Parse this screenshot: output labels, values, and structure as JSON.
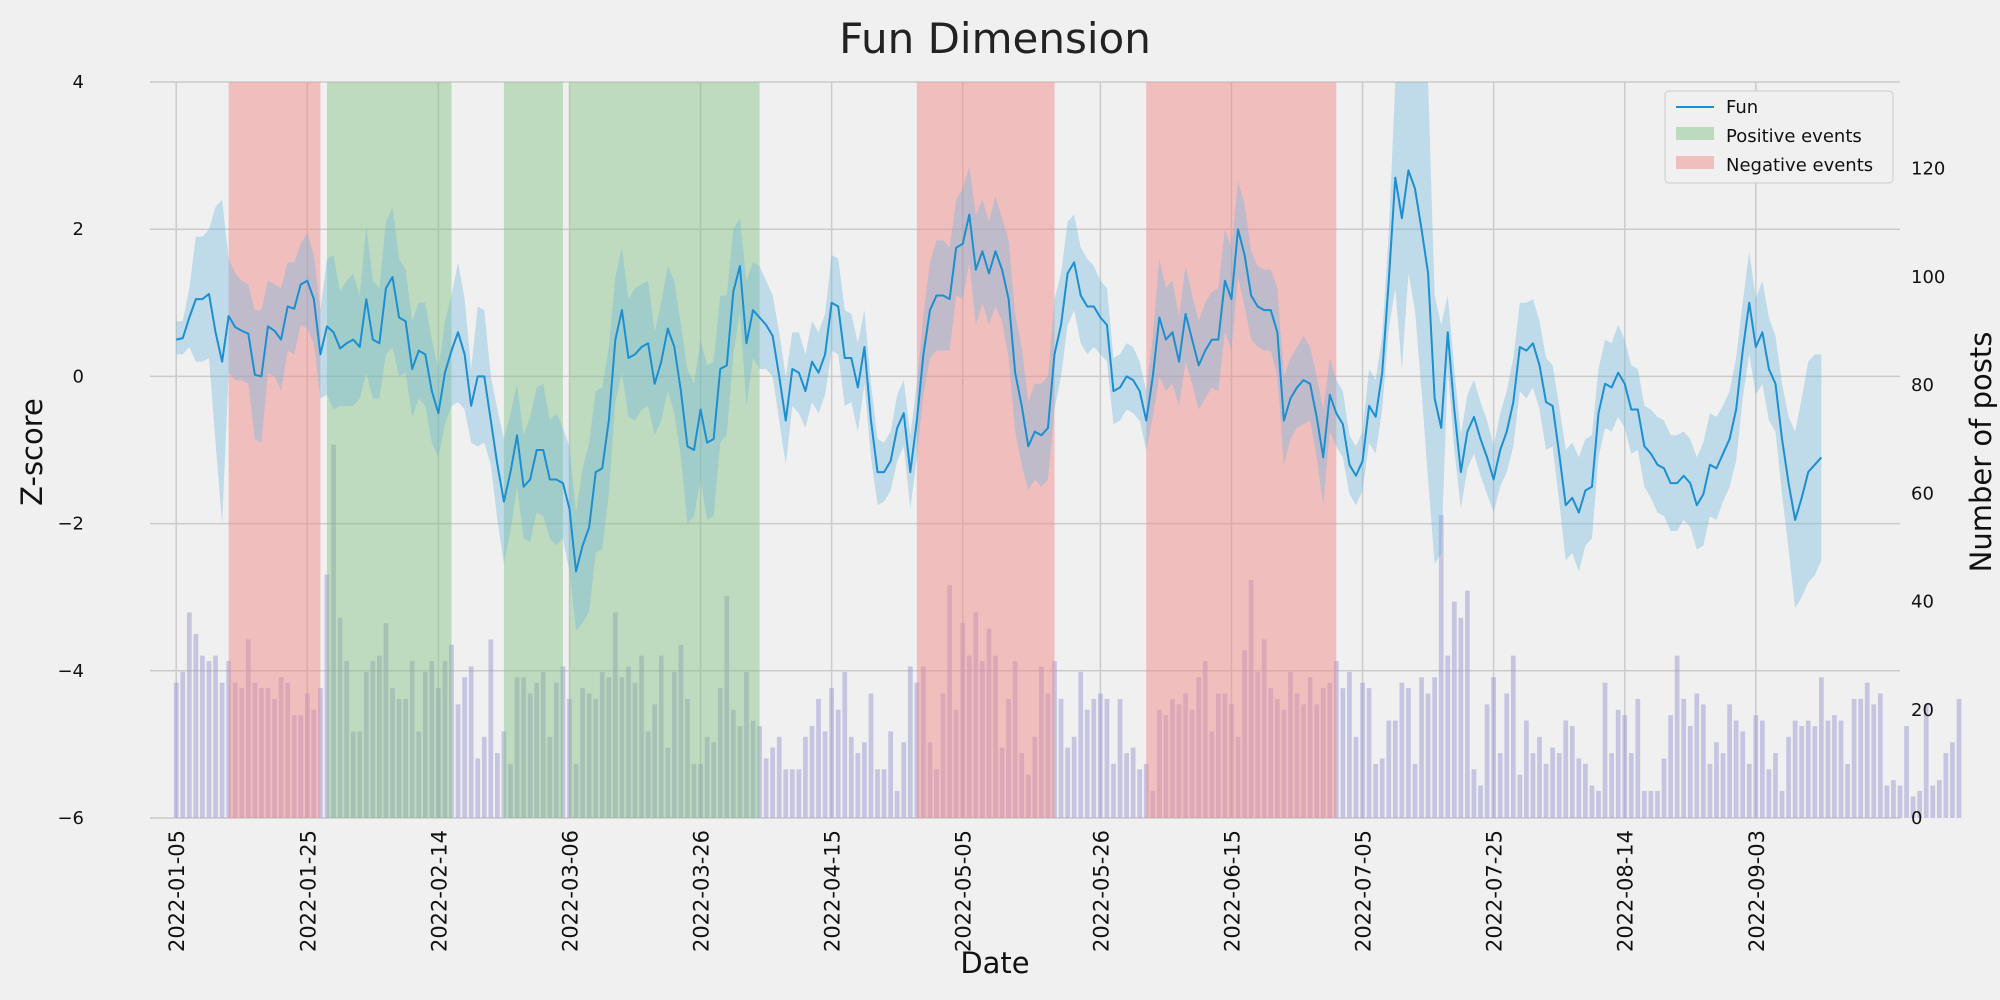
{
  "chart_data": {
    "type": "line",
    "title": "Fun Dimension",
    "xlabel": "Date",
    "ylabel": "Z-score",
    "y2label": "Number of posts",
    "ylim": [
      -6,
      4
    ],
    "y2lim": [
      0,
      136
    ],
    "xlim": [
      "2022-01-01",
      "2022-09-25"
    ],
    "yticks": [
      4,
      2,
      0,
      -2,
      -4,
      -6
    ],
    "y2ticks": [
      120,
      100,
      80,
      60,
      40,
      20,
      0
    ],
    "xticks": [
      "2022-01-05",
      "2022-01-25",
      "2022-02-14",
      "2022-03-06",
      "2022-03-26",
      "2022-04-15",
      "2022-05-05",
      "2022-05-26",
      "2022-06-15",
      "2022-07-05",
      "2022-07-25",
      "2022-08-14",
      "2022-09-03"
    ],
    "grid": true,
    "legend": {
      "placement": "top-right",
      "entries": [
        {
          "label": "Fun",
          "kind": "line",
          "color": "#1c8fd0"
        },
        {
          "label": "Positive events",
          "kind": "patch",
          "color": "#7cbf7c"
        },
        {
          "label": "Negative events",
          "kind": "patch",
          "color": "#f28c8c"
        }
      ]
    },
    "positive_events": [
      [
        "2022-01-28",
        "2022-02-16"
      ],
      [
        "2022-02-24",
        "2022-03-05"
      ],
      [
        "2022-03-06",
        "2022-04-04"
      ]
    ],
    "negative_events": [
      [
        "2022-01-13",
        "2022-01-27"
      ],
      [
        "2022-04-28",
        "2022-05-19"
      ],
      [
        "2022-06-02",
        "2022-07-01"
      ]
    ],
    "series": [
      {
        "name": "Fun",
        "start_date": "2022-01-05",
        "color": "#1c8fd0",
        "values": [
          0.5,
          0.52,
          0.8,
          1.05,
          1.05,
          1.12,
          0.6,
          0.2,
          0.82,
          0.67,
          0.62,
          0.58,
          0.02,
          0.0,
          0.68,
          0.62,
          0.5,
          0.95,
          0.92,
          1.25,
          1.3,
          1.05,
          0.3,
          0.68,
          0.6,
          0.38,
          0.45,
          0.5,
          0.4,
          1.05,
          0.5,
          0.45,
          1.2,
          1.35,
          0.8,
          0.75,
          0.1,
          0.35,
          0.3,
          -0.2,
          -0.5,
          0.05,
          0.35,
          0.6,
          0.3,
          -0.4,
          0.0,
          0.0,
          -0.6,
          -1.2,
          -1.7,
          -1.3,
          -0.8,
          -1.5,
          -1.4,
          -1.0,
          -1.0,
          -1.4,
          -1.4,
          -1.45,
          -1.8,
          -2.65,
          -2.3,
          -2.05,
          -1.3,
          -1.25,
          -0.6,
          0.5,
          0.9,
          0.25,
          0.3,
          0.4,
          0.45,
          -0.1,
          0.2,
          0.65,
          0.4,
          -0.2,
          -0.95,
          -1.0,
          -0.45,
          -0.9,
          -0.85,
          0.1,
          0.15,
          1.15,
          1.5,
          0.45,
          0.9,
          0.8,
          0.7,
          0.55,
          0.0,
          -0.6,
          0.1,
          0.05,
          -0.2,
          0.2,
          0.05,
          0.3,
          1.0,
          0.95,
          0.25,
          0.25,
          -0.15,
          0.4,
          -0.6,
          -1.3,
          -1.3,
          -1.15,
          -0.7,
          -0.5,
          -1.3,
          -0.6,
          0.3,
          0.9,
          1.1,
          1.1,
          1.05,
          1.75,
          1.8,
          2.2,
          1.45,
          1.7,
          1.4,
          1.7,
          1.45,
          1.05,
          0.05,
          -0.4,
          -0.95,
          -0.75,
          -0.8,
          -0.7,
          0.3,
          0.7,
          1.4,
          1.55,
          1.1,
          0.95,
          0.95,
          0.8,
          0.7,
          -0.2,
          -0.15,
          0.0,
          -0.05,
          -0.2,
          -0.6,
          0.0,
          0.8,
          0.5,
          0.6,
          0.2,
          0.85,
          0.5,
          0.15,
          0.35,
          0.5,
          0.5,
          1.3,
          1.05,
          2.0,
          1.65,
          1.1,
          0.95,
          0.9,
          0.9,
          0.6,
          -0.6,
          -0.3,
          -0.15,
          -0.05,
          -0.1,
          -0.55,
          -1.1,
          -0.25,
          -0.5,
          -0.65,
          -1.2,
          -1.35,
          -1.15,
          -0.4,
          -0.55,
          0.05,
          1.3,
          2.7,
          2.15,
          2.8,
          2.55,
          2.0,
          1.4,
          -0.3,
          -0.7,
          0.6,
          -0.45,
          -1.3,
          -0.75,
          -0.55,
          -0.85,
          -1.1,
          -1.4,
          -1.0,
          -0.75,
          -0.35,
          0.4,
          0.35,
          0.45,
          0.15,
          -0.35,
          -0.4,
          -1.05,
          -1.75,
          -1.65,
          -1.85,
          -1.55,
          -1.5,
          -0.5,
          -0.1,
          -0.15,
          0.05,
          -0.1,
          -0.45,
          -0.45,
          -0.95,
          -1.05,
          -1.2,
          -1.25,
          -1.45,
          -1.45,
          -1.35,
          -1.45,
          -1.75,
          -1.6,
          -1.2,
          -1.25,
          -1.05,
          -0.85,
          -0.45,
          0.35,
          1.0,
          0.4,
          0.6,
          0.1,
          -0.1,
          -0.85,
          -1.45,
          -1.95,
          -1.65,
          -1.3,
          -1.2,
          -1.1
        ],
        "band_upper": [
          0.75,
          0.75,
          1.2,
          1.9,
          1.9,
          2.0,
          2.3,
          2.4,
          1.6,
          1.4,
          1.3,
          1.25,
          0.9,
          0.9,
          1.3,
          1.25,
          1.2,
          1.55,
          1.55,
          1.8,
          1.95,
          1.65,
          0.9,
          1.6,
          1.65,
          1.15,
          1.3,
          1.4,
          1.1,
          2.05,
          1.3,
          1.2,
          2.1,
          2.3,
          1.6,
          1.45,
          0.75,
          1.0,
          1.0,
          0.5,
          0.1,
          0.75,
          1.1,
          1.55,
          1.05,
          0.1,
          0.95,
          0.9,
          0.0,
          -0.45,
          -0.85,
          -0.5,
          -0.1,
          -0.8,
          -0.55,
          -0.15,
          -0.1,
          -0.6,
          -0.5,
          -0.7,
          -0.95,
          -1.85,
          -1.25,
          -0.9,
          -0.2,
          -0.15,
          0.4,
          1.35,
          1.75,
          1.05,
          1.2,
          1.25,
          1.3,
          0.6,
          1.0,
          1.5,
          1.3,
          0.7,
          0.1,
          -0.1,
          0.5,
          0.15,
          0.2,
          1.1,
          1.1,
          2.0,
          2.15,
          1.3,
          1.55,
          1.5,
          1.3,
          1.1,
          0.6,
          0.0,
          0.6,
          0.6,
          0.3,
          0.75,
          0.6,
          0.85,
          1.65,
          1.6,
          0.9,
          0.85,
          0.45,
          0.9,
          -0.1,
          -0.85,
          -0.9,
          -0.75,
          -0.25,
          -0.05,
          -0.8,
          -0.1,
          0.85,
          1.55,
          1.85,
          1.85,
          1.75,
          2.4,
          2.55,
          2.85,
          2.2,
          2.4,
          2.1,
          2.45,
          2.15,
          1.85,
          0.85,
          0.4,
          -0.35,
          -0.1,
          -0.1,
          0.0,
          1.05,
          1.4,
          2.1,
          2.2,
          1.75,
          1.6,
          1.5,
          1.3,
          1.2,
          0.25,
          0.3,
          0.45,
          0.4,
          0.2,
          -0.2,
          0.55,
          1.6,
          1.2,
          1.3,
          0.8,
          1.5,
          1.1,
          0.75,
          1.0,
          1.15,
          1.2,
          2.0,
          1.75,
          2.65,
          2.35,
          1.7,
          1.5,
          1.45,
          1.45,
          1.2,
          0.0,
          0.25,
          0.4,
          0.55,
          0.4,
          0.0,
          -0.45,
          0.25,
          -0.05,
          -0.2,
          -0.8,
          -0.95,
          -0.75,
          0.1,
          -0.05,
          0.55,
          1.95,
          4.2,
          4.2,
          4.2,
          4.2,
          4.2,
          4.2,
          1.1,
          0.7,
          1.1,
          0.1,
          -0.8,
          -0.25,
          -0.05,
          -0.35,
          -0.6,
          -0.95,
          -0.5,
          -0.2,
          0.25,
          1.0,
          1.0,
          1.05,
          0.75,
          0.25,
          0.15,
          -0.4,
          -1.0,
          -0.9,
          -1.1,
          -0.85,
          -0.8,
          0.1,
          0.5,
          0.45,
          0.7,
          0.5,
          0.15,
          0.1,
          -0.4,
          -0.45,
          -0.55,
          -0.6,
          -0.8,
          -0.8,
          -0.75,
          -0.85,
          -1.1,
          -0.9,
          -0.5,
          -0.55,
          -0.4,
          -0.2,
          0.25,
          1.0,
          1.7,
          1.05,
          1.3,
          0.8,
          0.55,
          -0.1,
          -0.55,
          -0.75,
          -0.3,
          0.2,
          0.3,
          0.3
        ],
        "band_lower": [
          0.3,
          0.3,
          0.4,
          0.2,
          0.2,
          0.25,
          -0.9,
          -2.0,
          0.05,
          -0.05,
          -0.05,
          -0.1,
          -0.85,
          -0.9,
          0.05,
          0.0,
          -0.2,
          0.35,
          0.3,
          0.7,
          0.65,
          0.45,
          -0.3,
          -0.25,
          -0.45,
          -0.4,
          -0.4,
          -0.4,
          -0.3,
          0.05,
          -0.3,
          -0.3,
          0.3,
          0.4,
          0.0,
          0.05,
          -0.55,
          -0.3,
          -0.4,
          -0.9,
          -1.1,
          -0.65,
          -0.4,
          -0.35,
          -0.45,
          -0.9,
          -0.95,
          -0.9,
          -1.2,
          -1.95,
          -2.55,
          -2.1,
          -1.5,
          -2.2,
          -2.25,
          -1.85,
          -1.9,
          -2.2,
          -2.3,
          -2.2,
          -2.65,
          -3.45,
          -3.35,
          -3.2,
          -2.4,
          -2.35,
          -1.6,
          -0.35,
          0.05,
          -0.55,
          -0.6,
          -0.45,
          -0.4,
          -0.8,
          -0.6,
          -0.2,
          -0.5,
          -1.1,
          -2.0,
          -1.9,
          -1.4,
          -1.95,
          -1.9,
          -0.9,
          -0.8,
          0.3,
          0.85,
          -0.4,
          0.25,
          0.1,
          0.1,
          0.0,
          -0.6,
          -1.2,
          -0.4,
          -0.5,
          -0.7,
          -0.35,
          -0.5,
          -0.25,
          0.35,
          0.3,
          -0.4,
          -0.35,
          -0.75,
          -0.1,
          -1.1,
          -1.75,
          -1.7,
          -1.55,
          -1.15,
          -0.95,
          -1.8,
          -1.1,
          -0.25,
          0.25,
          0.35,
          0.35,
          0.35,
          1.1,
          1.05,
          1.55,
          0.7,
          1.0,
          0.7,
          0.95,
          0.75,
          0.25,
          -0.75,
          -1.2,
          -1.55,
          -1.4,
          -1.5,
          -1.4,
          -0.45,
          0.0,
          0.7,
          0.9,
          0.45,
          0.3,
          0.4,
          0.3,
          0.2,
          -0.65,
          -0.6,
          -0.45,
          -0.5,
          -0.6,
          -1.0,
          -0.55,
          0.0,
          -0.2,
          -0.1,
          -0.4,
          0.2,
          -0.1,
          -0.45,
          -0.3,
          -0.15,
          -0.2,
          0.6,
          0.35,
          1.35,
          0.95,
          0.5,
          0.4,
          0.35,
          0.35,
          0.0,
          -1.2,
          -0.85,
          -0.7,
          -0.65,
          -0.6,
          -1.1,
          -1.75,
          -0.75,
          -0.95,
          -1.1,
          -1.6,
          -1.75,
          -1.55,
          -0.9,
          -1.05,
          -0.45,
          0.65,
          1.2,
          0.1,
          1.4,
          0.9,
          -0.2,
          -1.4,
          -2.55,
          -2.4,
          0.1,
          -1.0,
          -1.8,
          -1.25,
          -1.05,
          -1.35,
          -1.6,
          -1.85,
          -1.5,
          -1.3,
          -0.95,
          -0.2,
          -0.3,
          -0.15,
          -0.45,
          -1.0,
          -0.95,
          -1.7,
          -2.5,
          -2.4,
          -2.65,
          -2.3,
          -2.2,
          -1.1,
          -0.7,
          -0.75,
          -0.55,
          -0.7,
          -1.05,
          -1.0,
          -1.5,
          -1.65,
          -1.85,
          -1.9,
          -2.1,
          -2.1,
          -1.95,
          -2.05,
          -2.35,
          -2.3,
          -1.9,
          -1.95,
          -1.7,
          -1.5,
          -1.15,
          -0.3,
          0.3,
          -0.25,
          -0.1,
          -0.6,
          -0.75,
          -1.6,
          -2.35,
          -3.15,
          -3.0,
          -2.8,
          -2.7,
          -2.5
        ]
      },
      {
        "name": "Number of posts",
        "start_date": "2022-01-05",
        "kind": "bar",
        "axis": "right",
        "values": [
          25,
          27,
          38,
          34,
          30,
          29,
          30,
          25,
          29,
          25,
          24,
          33,
          25,
          24,
          24,
          22,
          26,
          25,
          19,
          19,
          23,
          20,
          24,
          45,
          69,
          37,
          29,
          16,
          16,
          27,
          29,
          30,
          36,
          24,
          22,
          22,
          29,
          16,
          27,
          29,
          24,
          29,
          32,
          21,
          26,
          28,
          11,
          15,
          33,
          12,
          16,
          10,
          26,
          26,
          23,
          25,
          27,
          15,
          25,
          28,
          22,
          10,
          24,
          23,
          22,
          27,
          26,
          38,
          26,
          28,
          25,
          30,
          16,
          21,
          30,
          13,
          27,
          32,
          22,
          10,
          10,
          15,
          14,
          24,
          41,
          20,
          17,
          27,
          18,
          17,
          11,
          13,
          15,
          9,
          9,
          9,
          15,
          17,
          22,
          16,
          24,
          20,
          27,
          15,
          12,
          14,
          23,
          9,
          9,
          16,
          5,
          14,
          28,
          25,
          28,
          14,
          9,
          23,
          43,
          20,
          36,
          30,
          38,
          29,
          35,
          30,
          13,
          22,
          29,
          12,
          8,
          15,
          28,
          23,
          29,
          22,
          13,
          15,
          27,
          20,
          22,
          23,
          22,
          10,
          22,
          12,
          13,
          9,
          10,
          5,
          20,
          19,
          22,
          21,
          23,
          20,
          26,
          29,
          16,
          23,
          23,
          21,
          15,
          31,
          44,
          27,
          33,
          24,
          22,
          20,
          27,
          23,
          21,
          26,
          21,
          24,
          25,
          29,
          24,
          27,
          15,
          25,
          24,
          10,
          11,
          18,
          18,
          25,
          24,
          10,
          26,
          23,
          26,
          56,
          30,
          40,
          37,
          42,
          9,
          6,
          21,
          26,
          12,
          23,
          30,
          8,
          18,
          12,
          15,
          10,
          13,
          12,
          18,
          17,
          11,
          10,
          6,
          5,
          25,
          12,
          20,
          19,
          12,
          22,
          5,
          5,
          5,
          11,
          19,
          30,
          22,
          17,
          23,
          21,
          10,
          14,
          12,
          21,
          18,
          16,
          10,
          19,
          18,
          9,
          12,
          5,
          15,
          18,
          17,
          18,
          17,
          26,
          18,
          19,
          18,
          10,
          22,
          22,
          25,
          21,
          23,
          6,
          7,
          6,
          17,
          4,
          5,
          21,
          6,
          7,
          12,
          14,
          22
        ]
      }
    ]
  }
}
